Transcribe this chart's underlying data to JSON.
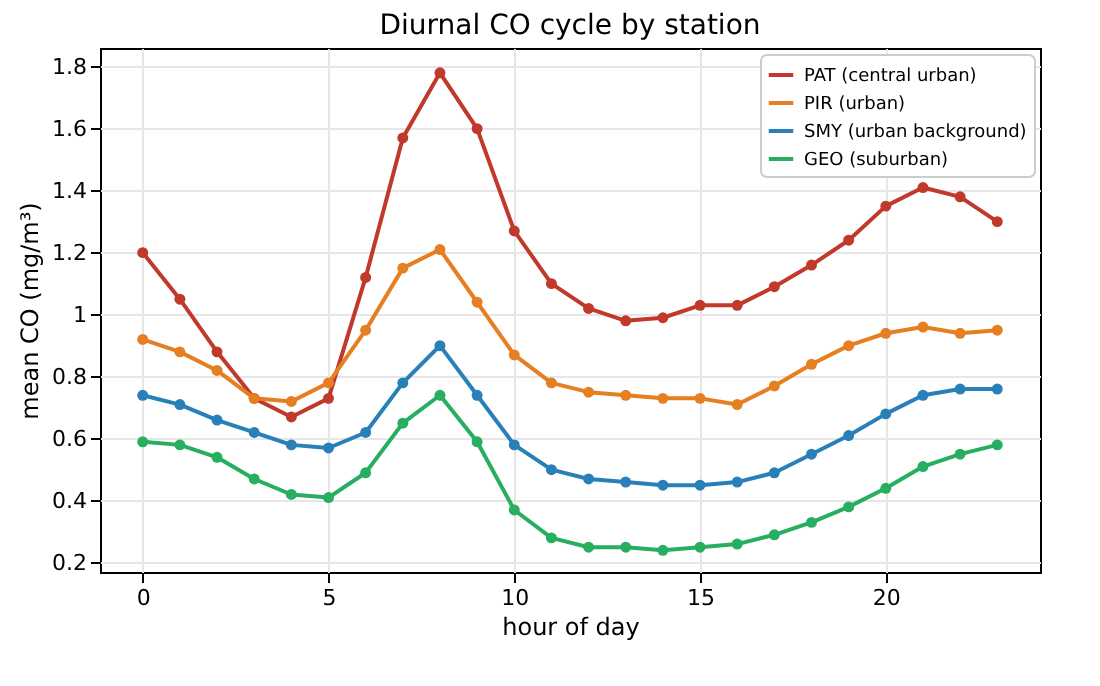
{
  "chart_data": {
    "type": "line",
    "title": "Diurnal CO cycle by station",
    "xlabel": "hour of day",
    "ylabel": "mean CO (mg/m³)",
    "x": [
      0,
      1,
      2,
      3,
      4,
      5,
      6,
      7,
      8,
      9,
      10,
      11,
      12,
      13,
      14,
      15,
      16,
      17,
      18,
      19,
      20,
      21,
      22,
      23
    ],
    "series": [
      {
        "name": "PAT (central urban)",
        "color": "#c0392b",
        "values": [
          1.2,
          1.05,
          0.88,
          0.73,
          0.67,
          0.73,
          1.12,
          1.57,
          1.78,
          1.6,
          1.27,
          1.1,
          1.02,
          0.98,
          0.99,
          1.03,
          1.03,
          1.09,
          1.16,
          1.24,
          1.35,
          1.41,
          1.38,
          1.3
        ]
      },
      {
        "name": "PIR (urban)",
        "color": "#e67e22",
        "values": [
          0.92,
          0.88,
          0.82,
          0.73,
          0.72,
          0.78,
          0.95,
          1.15,
          1.21,
          1.04,
          0.87,
          0.78,
          0.75,
          0.74,
          0.73,
          0.73,
          0.71,
          0.77,
          0.84,
          0.9,
          0.94,
          0.96,
          0.94,
          0.95
        ]
      },
      {
        "name": "SMY (urban background)",
        "color": "#2980b9",
        "values": [
          0.74,
          0.71,
          0.66,
          0.62,
          0.58,
          0.57,
          0.62,
          0.78,
          0.9,
          0.74,
          0.58,
          0.5,
          0.47,
          0.46,
          0.45,
          0.45,
          0.46,
          0.49,
          0.55,
          0.61,
          0.68,
          0.74,
          0.76,
          0.76
        ]
      },
      {
        "name": "GEO (suburban)",
        "color": "#27ae60",
        "values": [
          0.59,
          0.58,
          0.54,
          0.47,
          0.42,
          0.41,
          0.49,
          0.65,
          0.74,
          0.59,
          0.37,
          0.28,
          0.25,
          0.25,
          0.24,
          0.25,
          0.26,
          0.29,
          0.33,
          0.38,
          0.44,
          0.51,
          0.55,
          0.58
        ]
      }
    ],
    "xlim": [
      -1.15,
      24.15
    ],
    "xticks": [
      0,
      5,
      10,
      15,
      20
    ],
    "ylim": [
      0.17,
      1.86
    ],
    "yticks": [
      0.2,
      0.4,
      0.6,
      0.8,
      1.0,
      1.2,
      1.4,
      1.6,
      1.8
    ],
    "grid": true,
    "legend": "top right",
    "marker": "circle",
    "line_style": "solid"
  }
}
